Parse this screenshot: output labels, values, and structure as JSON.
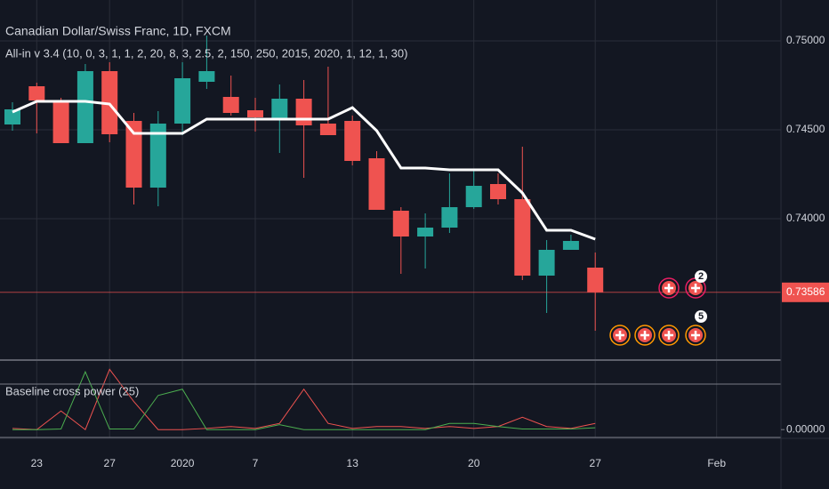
{
  "chart_data": [
    {
      "type": "candlestick",
      "title": "Canadian Dollar/Swiss Franc, 1D, FXCM",
      "subtitle": "All-in v 3.4 (10, 0, 3, 1, 1, 2, 20, 8, 3, 2.5, 2, 150, 250, 2015, 2020, 1, 12, 1, 30)",
      "categories": [
        null,
        "23",
        null,
        null,
        "27",
        null,
        null,
        "2020",
        null,
        null,
        "7",
        null,
        null,
        null,
        "13",
        null,
        null,
        null,
        null,
        "20",
        null,
        null,
        null,
        null,
        "27",
        null,
        null,
        null,
        null,
        "Feb"
      ],
      "open": [
        0.7453,
        0.74745,
        0.74655,
        0.74425,
        0.7483,
        0.7455,
        0.74175,
        0.74535,
        0.7477,
        0.74685,
        0.7461,
        0.74565,
        0.74675,
        0.74535,
        0.7455,
        0.7434,
        0.74045,
        0.739,
        0.7395,
        0.74065,
        0.74195,
        0.7411,
        0.7368,
        0.73825,
        0.73725,
        null,
        null,
        null,
        null,
        null
      ],
      "high": [
        0.74655,
        0.74765,
        0.7468,
        0.7487,
        0.7488,
        0.74595,
        0.74605,
        0.7488,
        0.7503,
        0.74805,
        0.7468,
        0.74755,
        0.7478,
        0.74855,
        0.7458,
        0.7438,
        0.74065,
        0.7403,
        0.74255,
        0.7428,
        0.74255,
        0.74405,
        0.7388,
        0.7391,
        0.7381,
        null,
        null,
        null,
        null,
        null
      ],
      "low": [
        0.74495,
        0.7448,
        0.74425,
        0.74425,
        0.7443,
        0.7408,
        0.7407,
        0.7447,
        0.7473,
        0.7458,
        0.7449,
        0.7437,
        0.7423,
        0.7447,
        0.743,
        0.7405,
        0.7369,
        0.7372,
        0.7392,
        0.74055,
        0.7408,
        0.73655,
        0.7347,
        0.73825,
        0.7337,
        null,
        null,
        null,
        null,
        null
      ],
      "close": [
        0.74615,
        0.74665,
        0.74425,
        0.7483,
        0.74475,
        0.74175,
        0.74535,
        0.7479,
        0.7483,
        0.74595,
        0.7457,
        0.74675,
        0.74525,
        0.7447,
        0.74325,
        0.7405,
        0.739,
        0.7395,
        0.74065,
        0.74185,
        0.7411,
        0.7368,
        0.73825,
        0.73875,
        0.73586,
        null,
        null,
        null,
        null,
        null
      ],
      "up_color": "#26a69a",
      "down_color": "#ef5350",
      "overlay_color": "#ffffff",
      "overlay_values": [
        0.746,
        0.7466,
        0.7466,
        0.7466,
        0.74645,
        0.7448,
        0.7448,
        0.7448,
        0.7456,
        0.7456,
        0.7456,
        0.7456,
        0.7456,
        0.7456,
        0.74625,
        0.74495,
        0.74285,
        0.74285,
        0.74275,
        0.74275,
        0.74275,
        0.74145,
        0.73935,
        0.73935,
        0.73885,
        null,
        null,
        null,
        null,
        null
      ],
      "last_price": {
        "value": 0.73586,
        "label": "0.73586"
      },
      "signal_badges": [
        "2",
        "5"
      ],
      "ylim": [
        0.73205,
        0.7523
      ],
      "yticks": [
        {
          "value": 0.75,
          "label": "0.75000"
        },
        {
          "value": 0.745,
          "label": "0.74500"
        },
        {
          "value": 0.74,
          "label": "0.74000"
        }
      ],
      "grid": true
    },
    {
      "type": "line",
      "title": "Baseline cross power (25)",
      "series": [
        {
          "color": "#ef5350",
          "values": [
            0.02,
            0,
            0.3,
            0,
            0.97,
            0.45,
            0,
            0,
            0.02,
            0.05,
            0.02,
            0.1,
            0.65,
            0.1,
            0.02,
            0.05,
            0.05,
            0.02,
            0.05,
            0.02,
            0.05,
            0.2,
            0.05,
            0.02,
            0.1,
            null,
            null,
            null,
            null,
            null
          ]
        },
        {
          "color": "#4caf50",
          "values": [
            0,
            0,
            0.01,
            0.93,
            0.01,
            0.01,
            0.55,
            0.65,
            0,
            0,
            0,
            0.08,
            0,
            0,
            0,
            0,
            0,
            0,
            0.1,
            0.1,
            0.05,
            0.01,
            0.01,
            0.01,
            0.03,
            null,
            null,
            null,
            null,
            null
          ]
        }
      ],
      "ylim": [
        -0.14,
        1.09
      ],
      "yticks": [
        {
          "value": 0,
          "label": "0.00000"
        }
      ]
    }
  ]
}
